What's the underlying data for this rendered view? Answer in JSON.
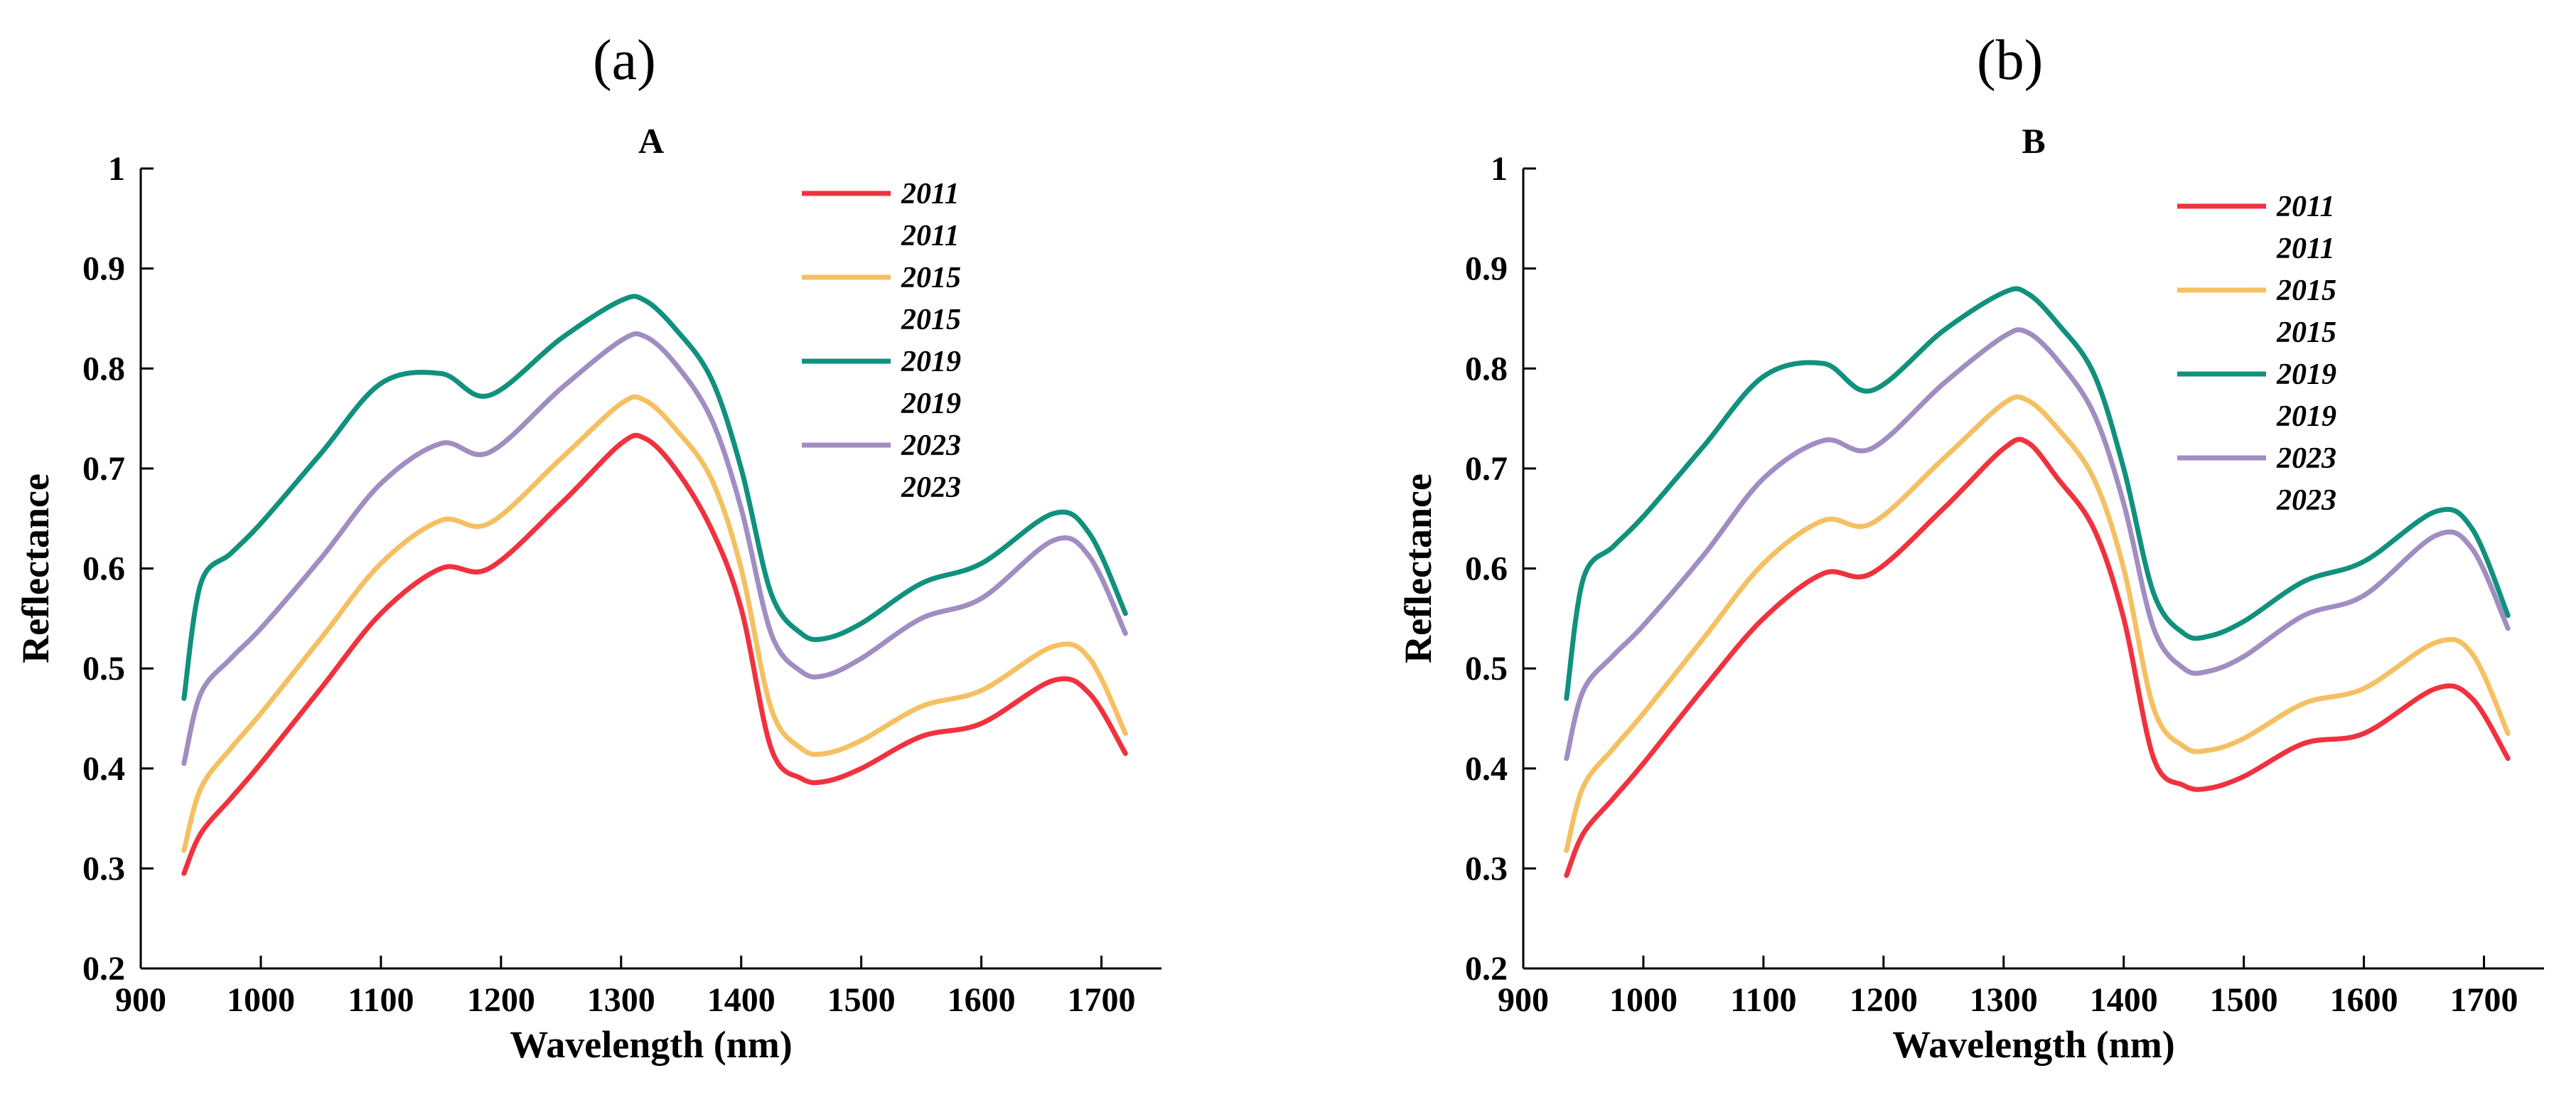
{
  "panel_letters": [
    "(a)",
    "(b)"
  ],
  "colors": {
    "2011": "#f0323e",
    "2015": "#f5c062",
    "2019": "#10917d",
    "2023": "#a08dc2"
  },
  "chart_data": [
    {
      "type": "line",
      "title": "A",
      "xlabel": "Wavelength (nm)",
      "ylabel": "Reflectance",
      "xlim": [
        900,
        1750
      ],
      "ylim": [
        0.2,
        1.0
      ],
      "xticks": [
        900,
        1000,
        1100,
        1200,
        1300,
        1400,
        1500,
        1600,
        1700
      ],
      "yticks": [
        0.2,
        0.3,
        0.4,
        0.5,
        0.6,
        0.7,
        0.8,
        0.9,
        1.0
      ],
      "ytick_labels": [
        "0.2",
        "0.3",
        "0.4",
        "0.5",
        "0.6",
        "0.7",
        "0.8",
        "0.9",
        "1"
      ],
      "grid": false,
      "legend_position": "top-right",
      "legend_entries": [
        "2011",
        "2011",
        "2015",
        "2015",
        "2019",
        "2019",
        "2023",
        "2023"
      ],
      "x": [
        936,
        950,
        975,
        1000,
        1050,
        1100,
        1150,
        1190,
        1250,
        1300,
        1320,
        1345,
        1375,
        1400,
        1425,
        1450,
        1470,
        1500,
        1550,
        1600,
        1660,
        1690,
        1720
      ],
      "series": [
        {
          "name": "2011",
          "values": [
            0.295,
            0.335,
            0.37,
            0.405,
            0.48,
            0.555,
            0.6,
            0.6,
            0.665,
            0.725,
            0.73,
            0.7,
            0.64,
            0.56,
            0.42,
            0.39,
            0.387,
            0.4,
            0.432,
            0.445,
            0.488,
            0.475,
            0.415
          ]
        },
        {
          "name": "2015",
          "values": [
            0.318,
            0.38,
            0.42,
            0.455,
            0.53,
            0.605,
            0.648,
            0.645,
            0.71,
            0.765,
            0.768,
            0.74,
            0.69,
            0.6,
            0.46,
            0.42,
            0.415,
            0.428,
            0.462,
            0.478,
            0.522,
            0.51,
            0.435
          ]
        },
        {
          "name": "2019",
          "values": [
            0.47,
            0.585,
            0.615,
            0.645,
            0.715,
            0.785,
            0.795,
            0.773,
            0.83,
            0.868,
            0.868,
            0.84,
            0.79,
            0.7,
            0.575,
            0.535,
            0.53,
            0.545,
            0.585,
            0.605,
            0.655,
            0.635,
            0.555
          ]
        },
        {
          "name": "2023",
          "values": [
            0.405,
            0.475,
            0.51,
            0.54,
            0.61,
            0.685,
            0.725,
            0.716,
            0.78,
            0.828,
            0.832,
            0.805,
            0.75,
            0.66,
            0.535,
            0.497,
            0.493,
            0.51,
            0.55,
            0.57,
            0.628,
            0.612,
            0.535
          ]
        }
      ]
    },
    {
      "type": "line",
      "title": "B",
      "xlabel": "Wavelength (nm)",
      "ylabel": "Reflectance",
      "xlim": [
        900,
        1750
      ],
      "ylim": [
        0.2,
        1.0
      ],
      "xticks": [
        900,
        1000,
        1100,
        1200,
        1300,
        1400,
        1500,
        1600,
        1700
      ],
      "yticks": [
        0.2,
        0.3,
        0.4,
        0.5,
        0.6,
        0.7,
        0.8,
        0.9,
        1.0
      ],
      "ytick_labels": [
        "0.2",
        "0.3",
        "0.4",
        "0.5",
        "0.6",
        "0.7",
        "0.8",
        "0.9",
        "1"
      ],
      "grid": false,
      "legend_position": "top-right",
      "legend_entries": [
        "2011",
        "2011",
        "2015",
        "2015",
        "2019",
        "2019",
        "2023",
        "2023"
      ],
      "x": [
        936,
        950,
        975,
        1000,
        1050,
        1100,
        1150,
        1190,
        1250,
        1300,
        1320,
        1345,
        1375,
        1400,
        1425,
        1450,
        1470,
        1500,
        1550,
        1600,
        1660,
        1690,
        1720
      ],
      "series": [
        {
          "name": "2011",
          "values": [
            0.293,
            0.335,
            0.37,
            0.405,
            0.48,
            0.55,
            0.595,
            0.595,
            0.66,
            0.72,
            0.726,
            0.69,
            0.64,
            0.55,
            0.41,
            0.383,
            0.38,
            0.392,
            0.425,
            0.435,
            0.48,
            0.47,
            0.41
          ]
        },
        {
          "name": "2015",
          "values": [
            0.318,
            0.382,
            0.42,
            0.455,
            0.53,
            0.605,
            0.648,
            0.645,
            0.71,
            0.765,
            0.768,
            0.74,
            0.69,
            0.6,
            0.46,
            0.422,
            0.418,
            0.43,
            0.465,
            0.48,
            0.526,
            0.515,
            0.435
          ]
        },
        {
          "name": "2019",
          "values": [
            0.47,
            0.59,
            0.622,
            0.652,
            0.722,
            0.792,
            0.805,
            0.778,
            0.838,
            0.876,
            0.875,
            0.845,
            0.795,
            0.7,
            0.575,
            0.535,
            0.532,
            0.547,
            0.587,
            0.607,
            0.657,
            0.64,
            0.553
          ]
        },
        {
          "name": "2023",
          "values": [
            0.41,
            0.478,
            0.513,
            0.543,
            0.613,
            0.69,
            0.728,
            0.72,
            0.785,
            0.832,
            0.836,
            0.808,
            0.755,
            0.665,
            0.54,
            0.5,
            0.497,
            0.512,
            0.553,
            0.573,
            0.633,
            0.62,
            0.54
          ]
        }
      ]
    }
  ]
}
